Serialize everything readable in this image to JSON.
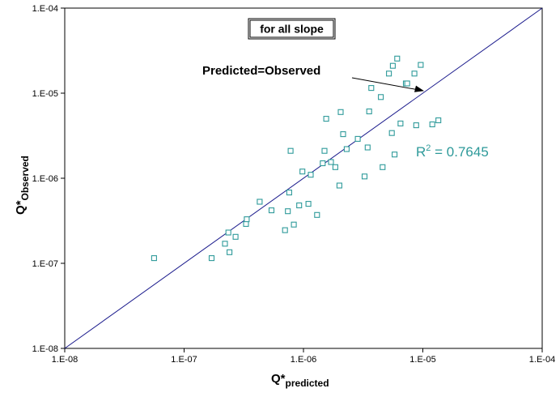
{
  "chart_data": {
    "type": "scatter",
    "title": "",
    "x_scale": "log",
    "y_scale": "log",
    "xlim": [
      1e-08,
      0.0001
    ],
    "ylim": [
      1e-08,
      0.0001
    ],
    "x_ticks": [
      "1.E-08",
      "1.E-07",
      "1.E-06",
      "1.E-05",
      "1.E-04"
    ],
    "y_ticks": [
      "1.E-08",
      "1.E-07",
      "1.E-06",
      "1.E-05",
      "1.E-04"
    ],
    "xlabel": {
      "main": "Q*",
      "sub": "predicted"
    },
    "ylabel": {
      "main": "Q*",
      "sub": "Observed"
    },
    "grid": false,
    "legend_label": "for all slope",
    "annotation": "Predicted=Observed",
    "r2_label": {
      "base": "R",
      "exp": "2",
      "value": " = 0.7645"
    },
    "marker_color": "#2e9a9a",
    "line_color": "#1a1a8c",
    "r2_color": "#2e9a9a",
    "reference_line": {
      "x": [
        1e-08,
        0.0001
      ],
      "y": [
        1e-08,
        0.0001
      ]
    },
    "series": [
      {
        "marker": "open-square",
        "x": [
          5.6e-08,
          1.7e-07,
          2.2e-07,
          2.35e-07,
          2.4e-07,
          2.7e-07,
          3.3e-07,
          3.35e-07,
          4.3e-07,
          5.4e-07,
          7e-07,
          7.4e-07,
          7.6e-07,
          7.8e-07,
          8.3e-07,
          9.2e-07,
          9.8e-07,
          1.1e-06,
          1.15e-06,
          1.3e-06,
          1.45e-06,
          1.5e-06,
          1.55e-06,
          1.7e-06,
          1.85e-06,
          2e-06,
          2.05e-06,
          2.15e-06,
          2.3e-06,
          2.85e-06,
          3.25e-06,
          3.45e-06,
          3.55e-06,
          3.7e-06,
          4.45e-06,
          4.6e-06,
          5.2e-06,
          5.5e-06,
          5.6e-06,
          5.8e-06,
          6.1e-06,
          6.5e-06,
          7.2e-06,
          7.4e-06,
          8.5e-06,
          8.8e-06,
          9.6e-06,
          1.2e-05,
          1.35e-05
        ],
        "y": [
          1.15e-07,
          1.15e-07,
          1.7e-07,
          2.3e-07,
          1.35e-07,
          2.05e-07,
          2.9e-07,
          3.3e-07,
          5.3e-07,
          4.2e-07,
          2.45e-07,
          4.1e-07,
          6.8e-07,
          2.1e-06,
          2.85e-07,
          4.8e-07,
          1.2e-06,
          5e-07,
          1.1e-06,
          3.7e-07,
          1.5e-06,
          2.1e-06,
          5e-06,
          1.55e-06,
          1.35e-06,
          8.2e-07,
          6e-06,
          3.3e-06,
          2.2e-06,
          2.9e-06,
          1.05e-06,
          2.3e-06,
          6.1e-06,
          1.15e-05,
          9e-06,
          1.35e-06,
          1.7e-05,
          3.4e-06,
          2.1e-05,
          1.9e-06,
          2.55e-05,
          4.4e-06,
          1.3e-05,
          1.3e-05,
          1.7e-05,
          4.2e-06,
          2.15e-05,
          4.3e-06,
          4.8e-06
        ]
      }
    ]
  }
}
